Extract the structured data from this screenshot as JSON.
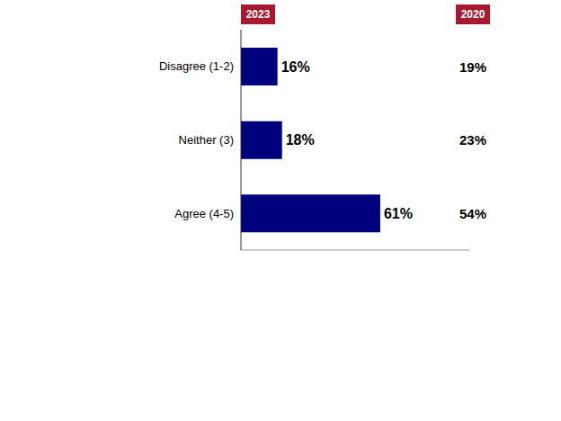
{
  "chart_data": {
    "type": "bar",
    "orientation": "horizontal",
    "categories": [
      "Disagree (1-2)",
      "Neither (3)",
      "Agree (4-5)"
    ],
    "series": [
      {
        "name": "2023",
        "type": "bar",
        "color": "#00007f",
        "values": [
          16,
          18,
          61
        ],
        "value_labels": [
          "16%",
          "18%",
          "61%"
        ]
      },
      {
        "name": "2020",
        "type": "text",
        "values": [
          19,
          23,
          54
        ],
        "value_labels": [
          "19%",
          "23%",
          "54%"
        ]
      }
    ],
    "xlim": [
      0,
      100
    ],
    "data_labels": true,
    "tick_labels": "y",
    "grid": false
  }
}
